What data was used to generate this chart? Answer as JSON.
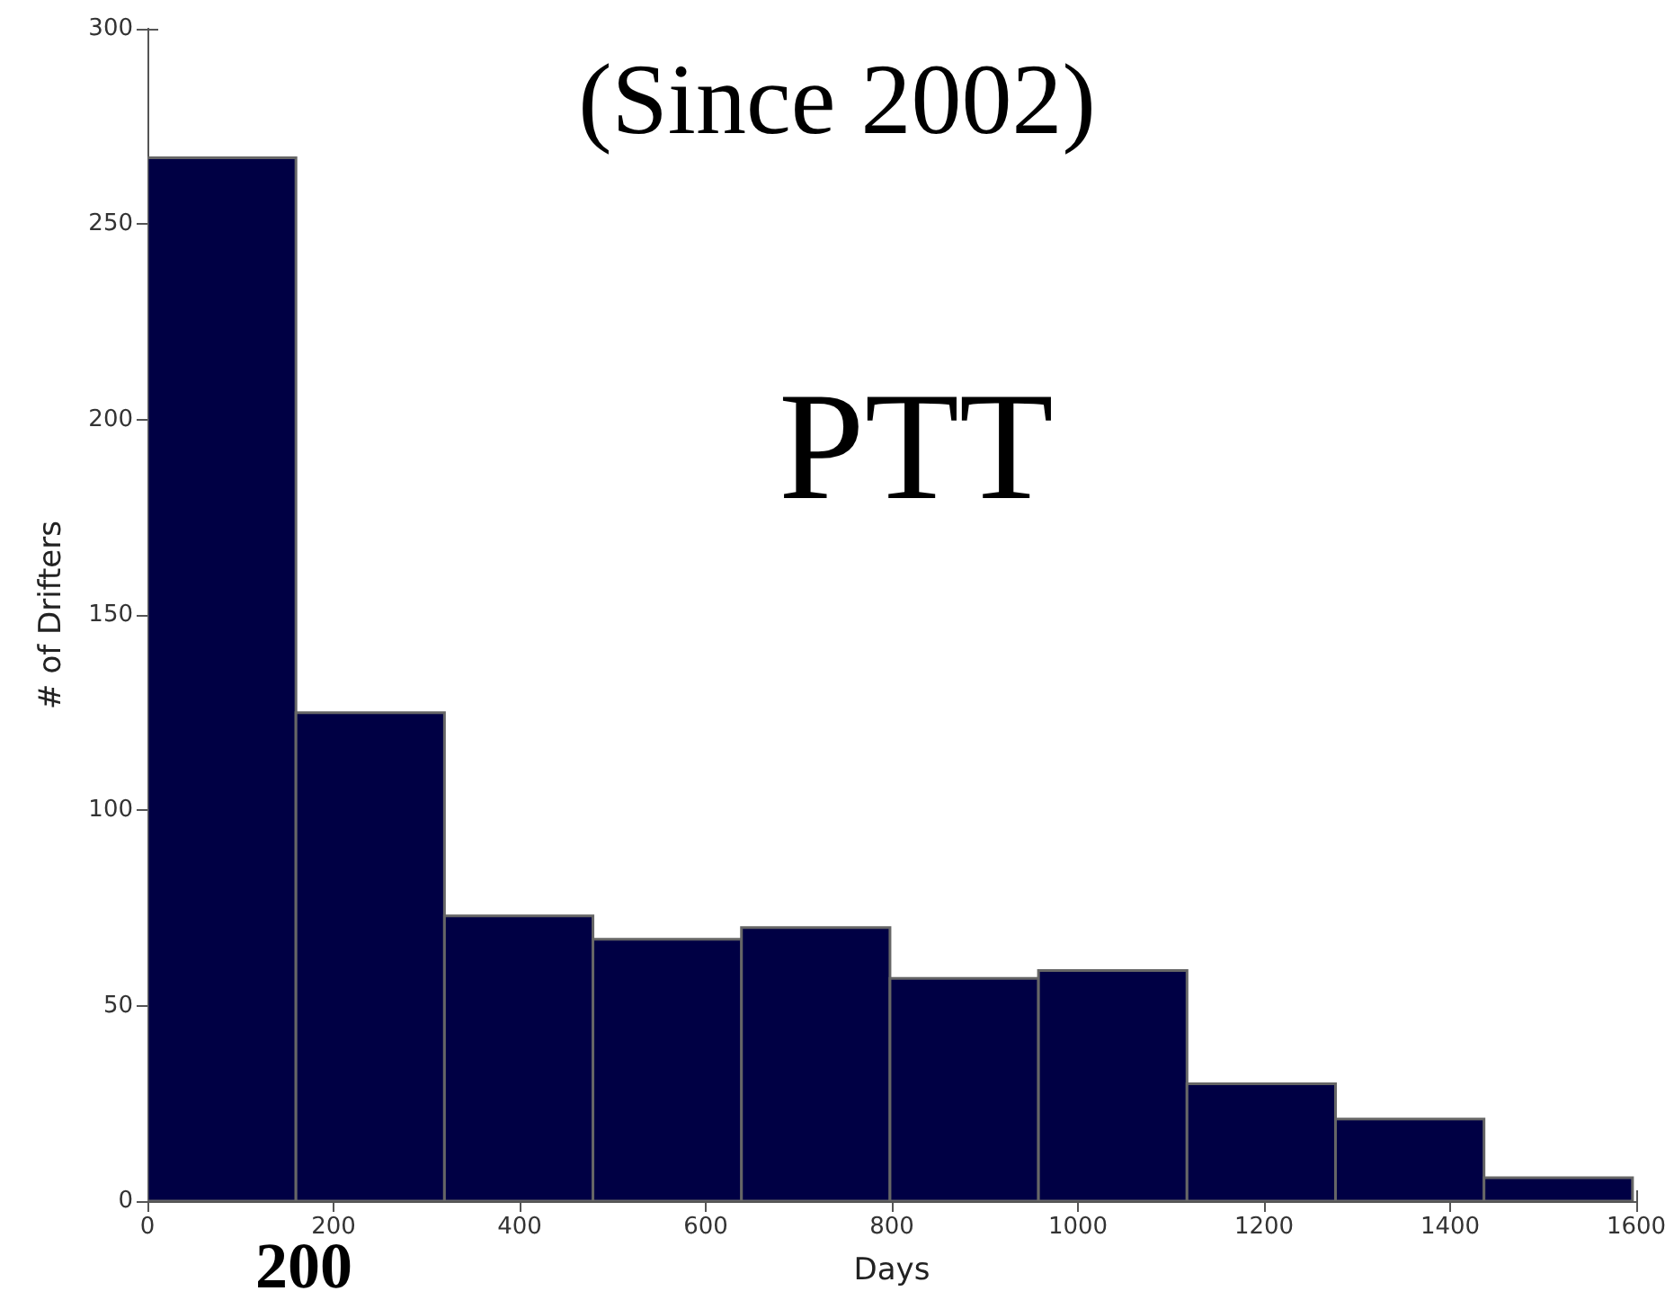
{
  "chart_data": {
    "type": "histogram",
    "xlabel": "Days",
    "ylabel": "# of Drifters",
    "annotations": [
      "(Since 2002)",
      "PTT",
      "200"
    ],
    "bins": [
      0,
      159.6,
      319.2,
      478.8,
      638.4,
      798,
      957.6,
      1117.2,
      1276.8,
      1436.4,
      1596
    ],
    "values": [
      267,
      125,
      73,
      67,
      70,
      57,
      59,
      30,
      21,
      6
    ],
    "color": "#000044",
    "xlim": [
      0,
      1600
    ],
    "xticks": [
      0,
      200,
      400,
      600,
      800,
      1000,
      1200,
      1400,
      1600
    ],
    "ylim": [
      0,
      300
    ],
    "yticks": [
      0,
      50,
      100,
      150,
      200,
      250,
      300
    ],
    "grid": false
  }
}
